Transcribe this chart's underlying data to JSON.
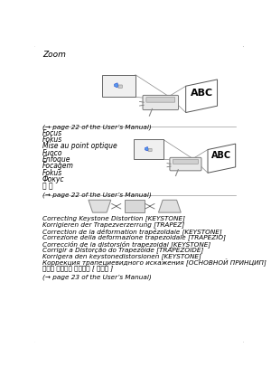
{
  "title": "Zoom",
  "page_ref1": "(→ page 22 of the User’s Manual)",
  "page_ref2": "(→ page 22 of the User’s Manual)",
  "page_ref3": "(→ page 23 of the User’s Manual)",
  "focus_lines": [
    "Focus",
    "Fokus",
    "Mise au point optique",
    "Fuoco",
    "Enfoque",
    "Focagem",
    "Fokus",
    "Фокус",
    "조 점"
  ],
  "keystone_lines": [
    "Correcting Keystone Distortion [KEYSTONE]",
    "Korrigieren der Trapezverzerrung [TRAPEZ]",
    "Correction de la déformation trapézoïdale [KEYSTONE]",
    "Correzione della deformazione trapezoidale [TRAPEZIO]",
    "Corrección de la distorsión trapezoidal [KEYSTONE]",
    "Corrigir a Distorção do Trapezóide [TRAPEZÓIDE]",
    "Korrigera den keystonedistorsionen [KEYSTONE]",
    "Коррекция трапециевидного искажения [ОСНОВНОЙ ПРИНЦИП]",
    "키스톤 일그러짐 바로잡기 [ 키스톤 ]"
  ],
  "bg_color": "#ffffff",
  "text_color": "#000000",
  "line_color": "#bbbbbb",
  "italic_fontsize": 5.5,
  "small_fontsize": 5.2,
  "title_fontsize": 6.5,
  "ref_fontsize": 5.2,
  "section_divider_color": "#999999"
}
